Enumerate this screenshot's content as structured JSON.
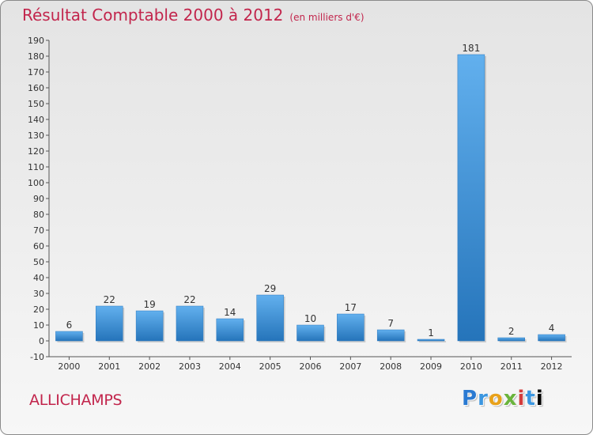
{
  "header": {
    "title": "Résultat Comptable 2000 à 2012",
    "subtitle": "(en milliers d'€)"
  },
  "footer": {
    "commune": "ALLICHAMPS",
    "logo_letters": [
      "P",
      "r",
      "o",
      "x",
      "i",
      "t",
      "i"
    ]
  },
  "chart_data": {
    "type": "bar",
    "title": "Résultat Comptable 2000 à 2012",
    "subtitle": "(en milliers d'€)",
    "categories": [
      "2000",
      "2001",
      "2002",
      "2003",
      "2004",
      "2005",
      "2006",
      "2007",
      "2008",
      "2009",
      "2010",
      "2011",
      "2012"
    ],
    "values": [
      6,
      22,
      19,
      22,
      14,
      29,
      10,
      17,
      7,
      1,
      181,
      2,
      4
    ],
    "ylim": [
      -10,
      190
    ],
    "yticks": [
      -10,
      0,
      10,
      20,
      30,
      40,
      50,
      60,
      70,
      80,
      90,
      100,
      110,
      120,
      130,
      140,
      150,
      160,
      170,
      180,
      190
    ],
    "grid": false,
    "bar_color": "#3a8fd8",
    "bar_color_light": "#62b0ee",
    "bar_color_dark": "#2574ba"
  }
}
